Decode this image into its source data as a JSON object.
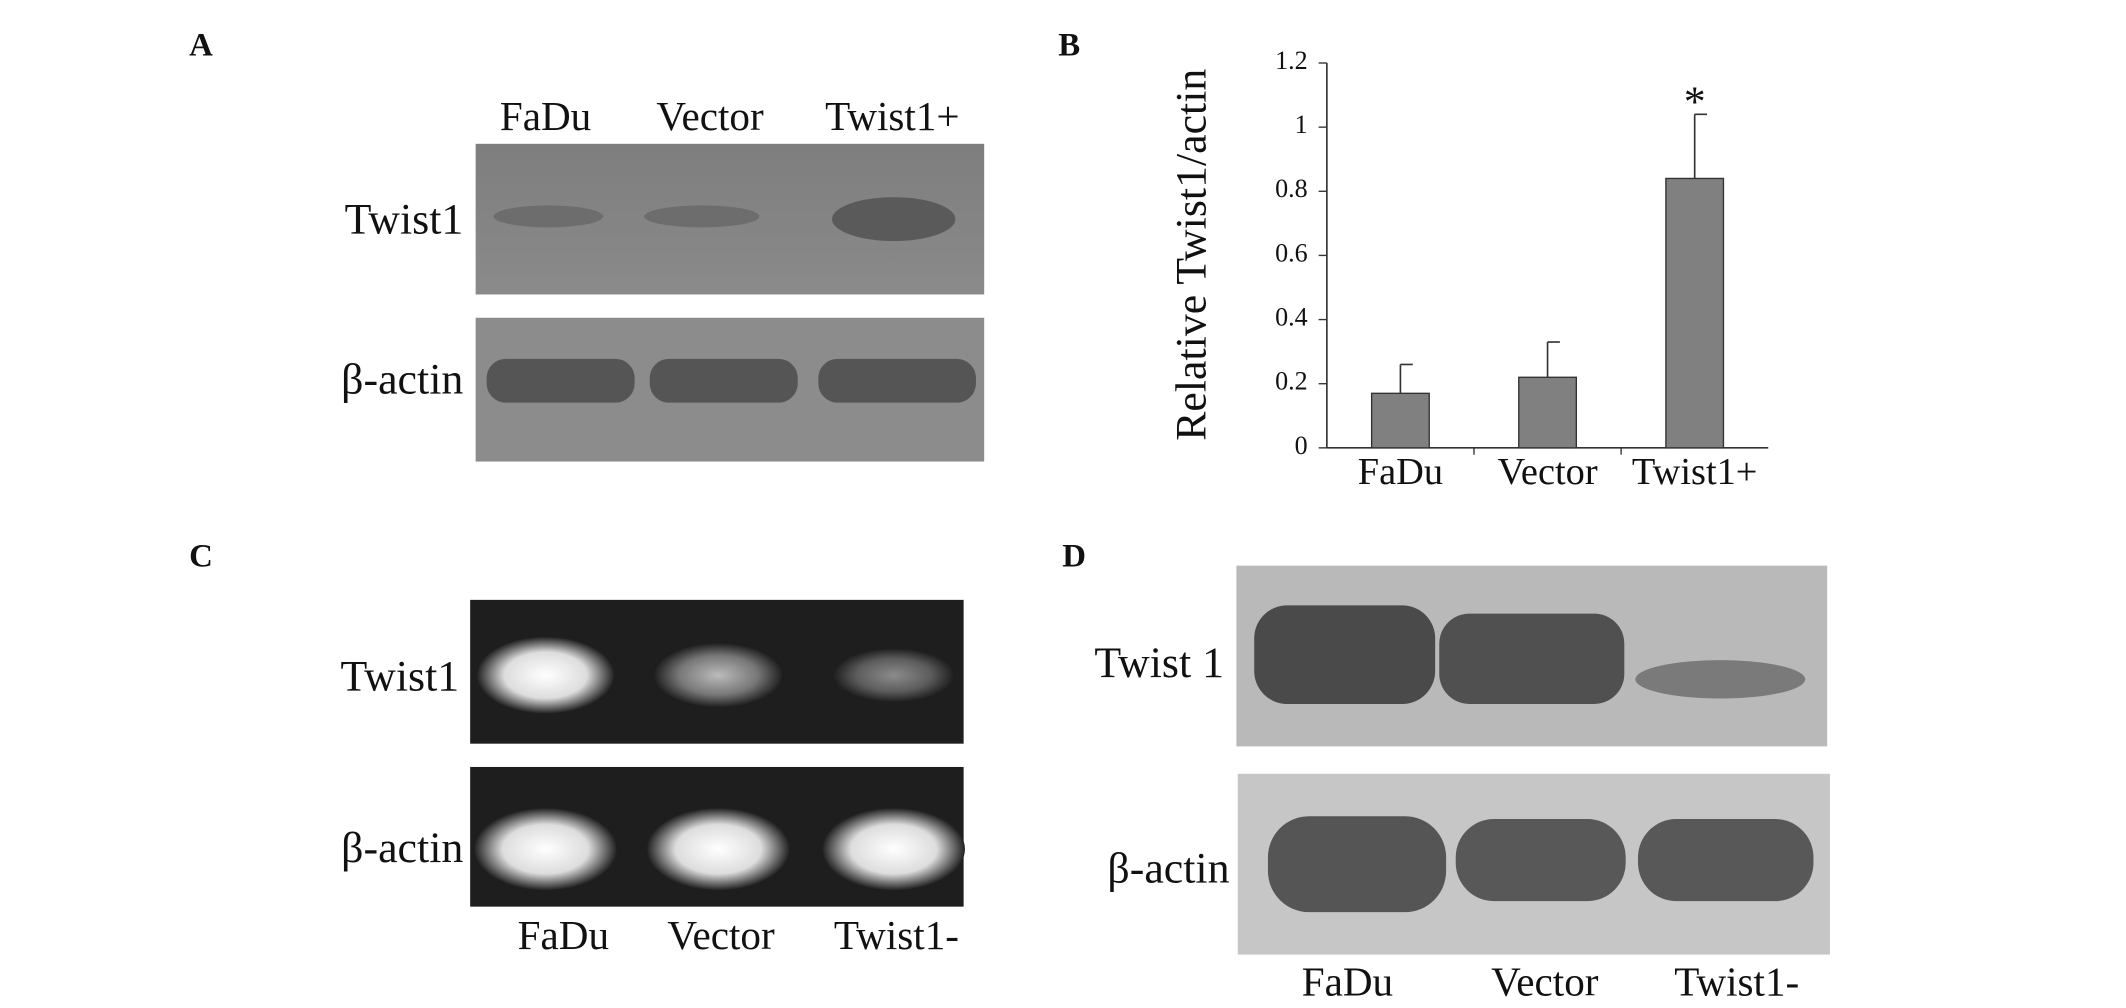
{
  "panels": {
    "a": {
      "letter": "A",
      "lanes": [
        "FaDu",
        "Vector",
        "Twist1+"
      ],
      "rows": [
        "Twist1",
        "β-actin"
      ]
    },
    "c": {
      "letter": "C",
      "lanes": [
        "FaDu",
        "Vector",
        "Twist1-"
      ],
      "rows": [
        "Twist1",
        "β-actin"
      ]
    },
    "d": {
      "letter": "D",
      "lanes": [
        "FaDu",
        "Vector",
        "Twist1-"
      ],
      "rows": [
        "Twist 1",
        "β-actin"
      ]
    }
  },
  "chart_data": {
    "type": "bar",
    "letter": "B",
    "y_label": "Relative Twist1/actin",
    "categories": [
      "FaDu",
      "Vector",
      "Twist1+"
    ],
    "values": [
      0.17,
      0.22,
      0.84
    ],
    "errors": [
      0.09,
      0.11,
      0.2
    ],
    "color": "#808080",
    "annotation": "*",
    "ylim": [
      0,
      1.2
    ],
    "yticks": [
      0,
      0.2,
      0.4,
      0.6,
      0.8,
      1,
      1.2
    ]
  }
}
